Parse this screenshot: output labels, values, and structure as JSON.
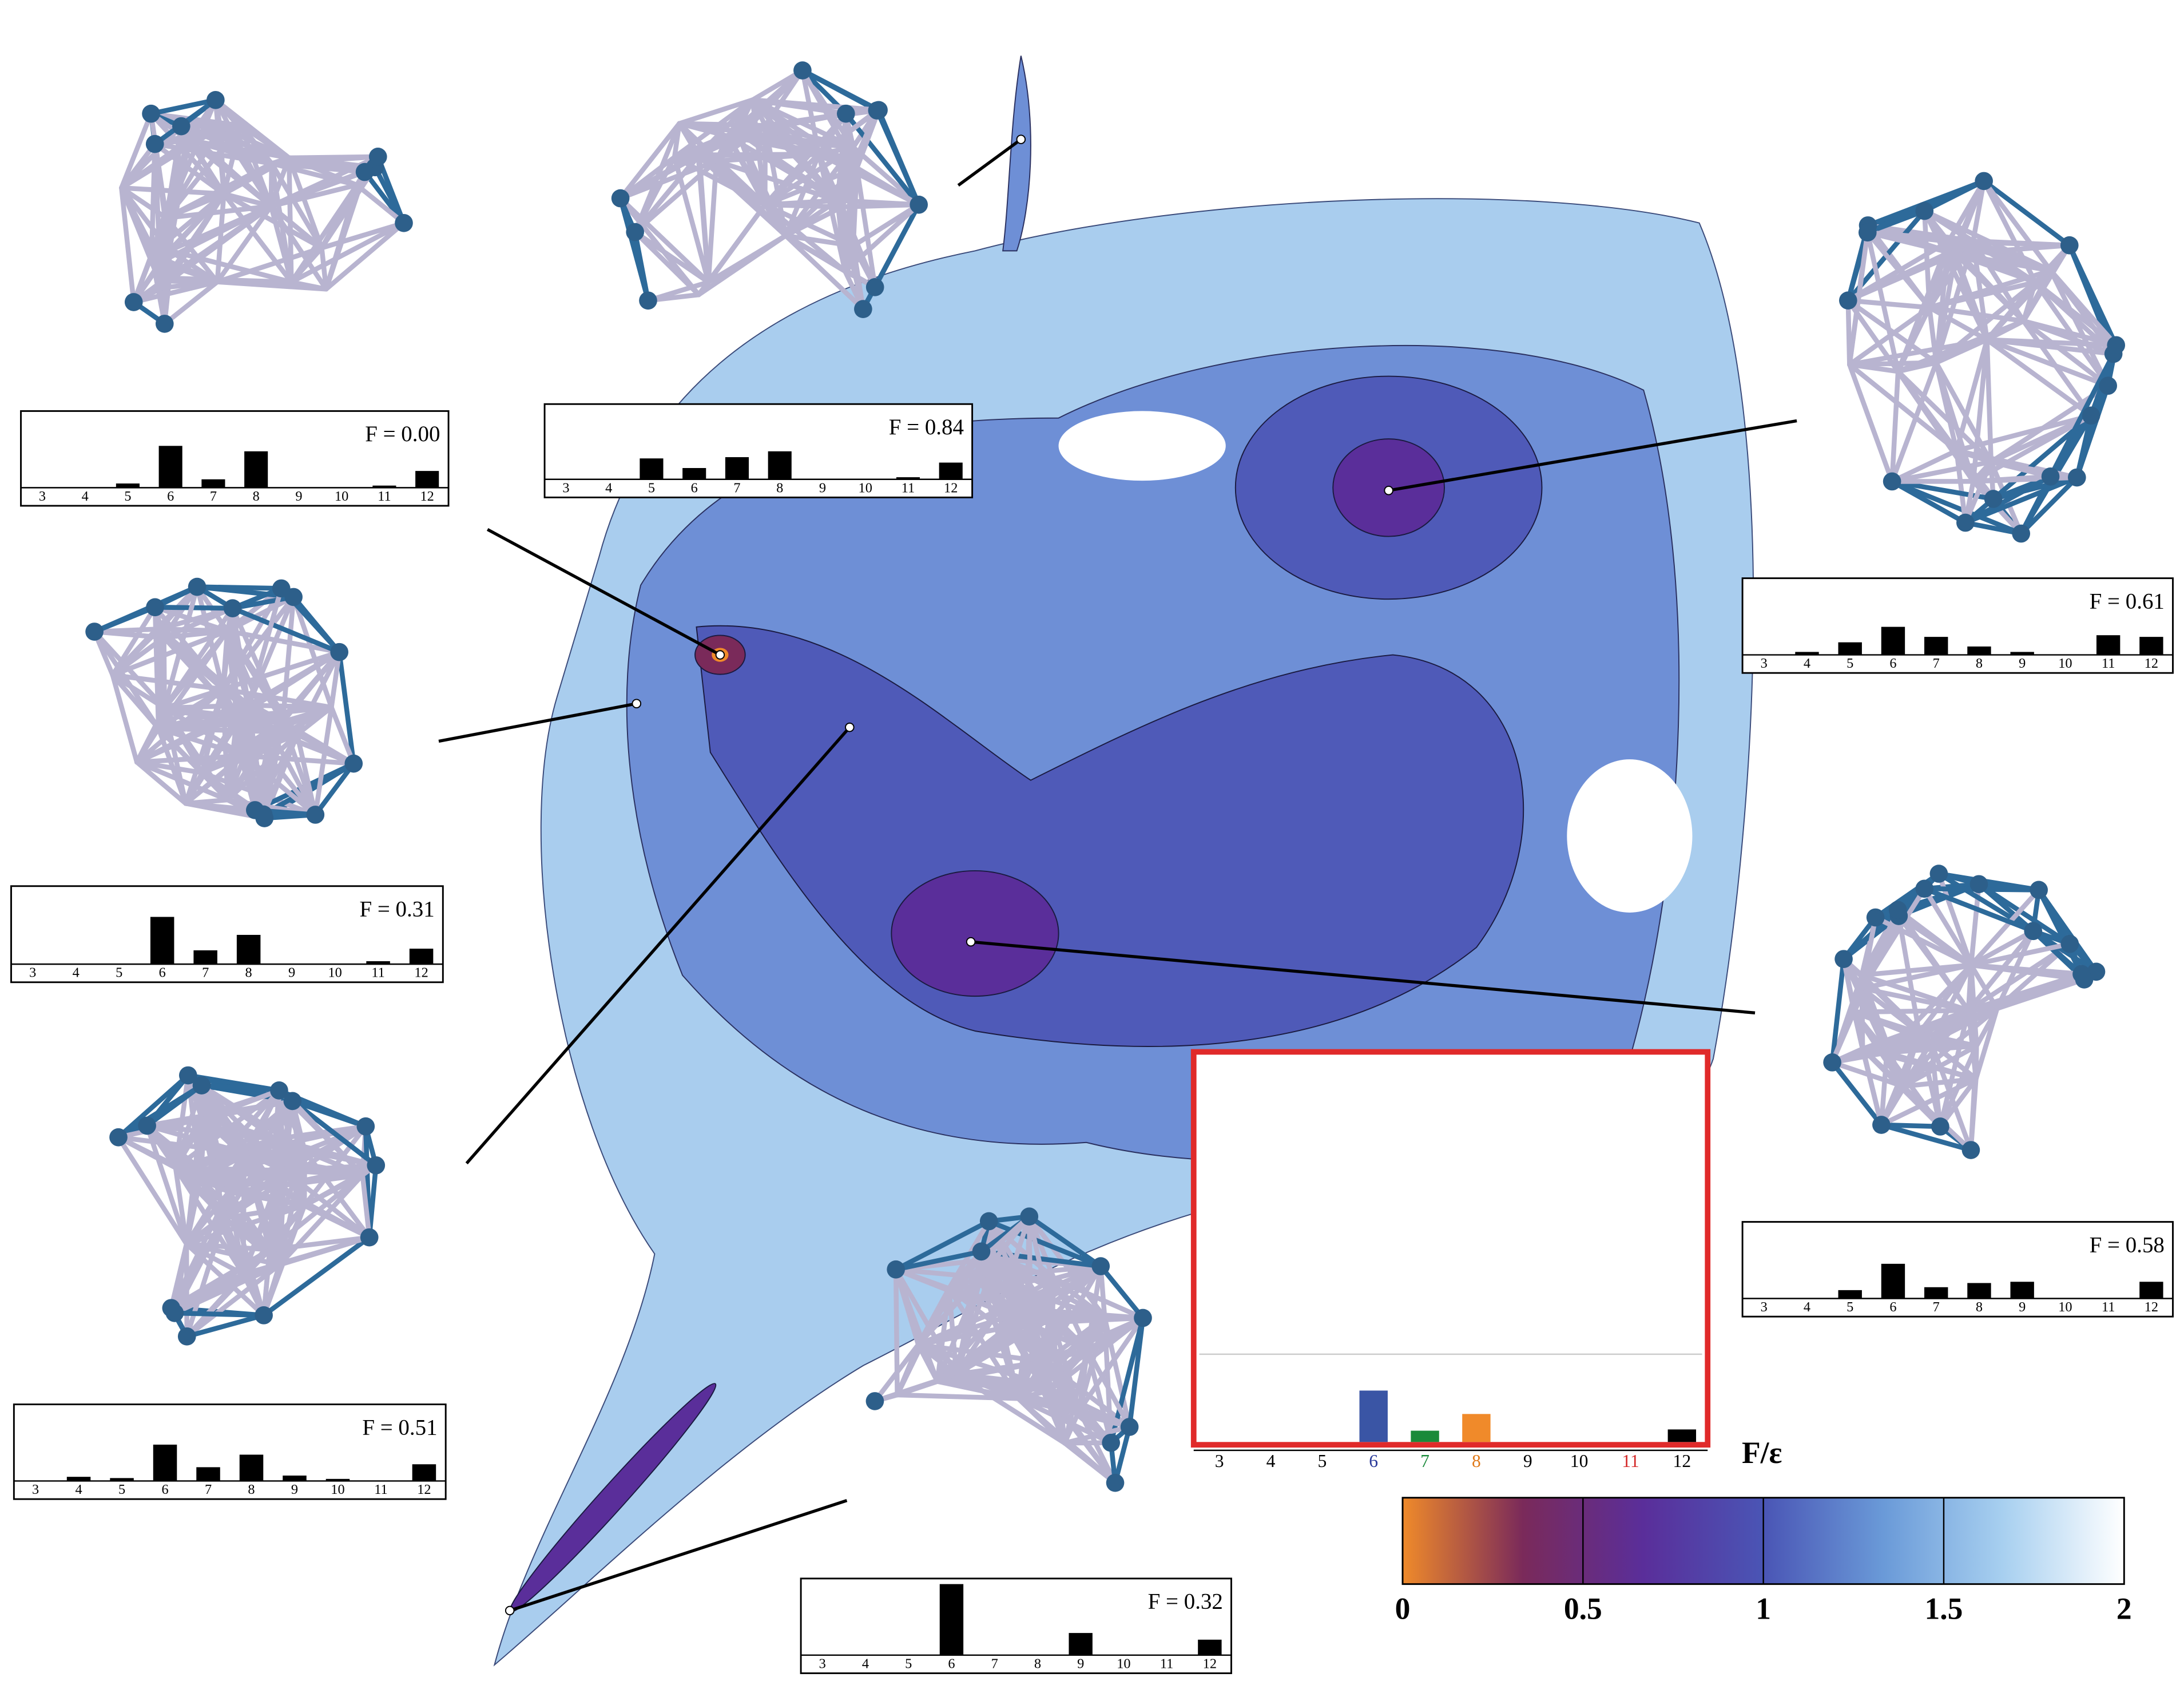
{
  "chart_data": [
    {
      "type": "bar",
      "title": "F = 0.00",
      "categories": [
        "3",
        "4",
        "5",
        "6",
        "7",
        "8",
        "9",
        "10",
        "11",
        "12"
      ],
      "values": [
        0,
        0,
        0.1,
        1.0,
        0.2,
        0.87,
        0,
        0,
        0.05,
        0.4
      ],
      "color": "#000000"
    },
    {
      "type": "bar",
      "title": "F = 0.84",
      "categories": [
        "3",
        "4",
        "5",
        "6",
        "7",
        "8",
        "9",
        "10",
        "11",
        "12"
      ],
      "values": [
        0,
        0,
        0.5,
        0.27,
        0.53,
        0.67,
        0,
        0,
        0.05,
        0.4
      ],
      "color": "#000000"
    },
    {
      "type": "bar",
      "title": "F = 0.61",
      "categories": [
        "3",
        "4",
        "5",
        "6",
        "7",
        "8",
        "9",
        "10",
        "11",
        "12"
      ],
      "values": [
        0,
        0.07,
        0.3,
        0.67,
        0.43,
        0.2,
        0.07,
        0,
        0.47,
        0.43
      ],
      "color": "#000000"
    },
    {
      "type": "bar",
      "title": "F = 0.31",
      "categories": [
        "3",
        "4",
        "5",
        "6",
        "7",
        "8",
        "9",
        "10",
        "11",
        "12"
      ],
      "values": [
        0,
        0,
        0,
        1.13,
        0.33,
        0.7,
        0,
        0,
        0.07,
        0.37
      ],
      "color": "#000000"
    },
    {
      "type": "bar",
      "title": "F = 0.58",
      "categories": [
        "3",
        "4",
        "5",
        "6",
        "7",
        "8",
        "9",
        "10",
        "11",
        "12"
      ],
      "values": [
        0,
        0,
        0.2,
        0.83,
        0.27,
        0.37,
        0.4,
        0,
        0,
        0.4
      ],
      "color": "#000000"
    },
    {
      "type": "bar",
      "title": "F = 0.51",
      "categories": [
        "3",
        "4",
        "5",
        "6",
        "7",
        "8",
        "9",
        "10",
        "11",
        "12"
      ],
      "values": [
        0,
        0.1,
        0.07,
        0.87,
        0.33,
        0.63,
        0.13,
        0.05,
        0,
        0.4
      ],
      "color": "#000000"
    },
    {
      "type": "bar",
      "title": "F = 0.32",
      "categories": [
        "3",
        "4",
        "5",
        "6",
        "7",
        "8",
        "9",
        "10",
        "11",
        "12"
      ],
      "values": [
        0,
        0,
        0,
        1.7,
        0,
        0,
        0.53,
        0,
        0,
        0.37
      ],
      "color": "#000000"
    },
    {
      "type": "bar",
      "categories": [
        "3",
        "4",
        "5",
        "6",
        "7",
        "8",
        "9",
        "10",
        "11",
        "12"
      ],
      "values": [
        0,
        0,
        0,
        1.23,
        0.27,
        0.67,
        0,
        0,
        0,
        0.3
      ],
      "colors": [
        "#000000",
        "#000000",
        "#000000",
        "#3a55a5",
        "#1a8a3a",
        "#f08a2a",
        "#000000",
        "#000000",
        "#d42a2a",
        "#000000"
      ],
      "label_colors": [
        "#000000",
        "#000000",
        "#000000",
        "#2a3a9a",
        "#1a8a3a",
        "#e07a1a",
        "#000000",
        "#000000",
        "#d42a2a",
        "#000000"
      ]
    },
    {
      "type": "colorbar",
      "label": "F/ε",
      "xlim": [
        0,
        2
      ],
      "xticks": [
        0,
        0.5,
        1,
        1.5,
        2
      ],
      "colors": [
        "#ef8a2a",
        "#7a2a5a",
        "#5a2e9a",
        "#4a55b5",
        "#6a9ad8",
        "#a8d0f0",
        "#ffffff"
      ]
    }
  ]
}
